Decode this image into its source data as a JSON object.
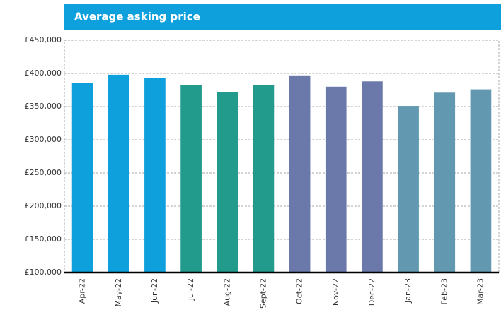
{
  "chart_data": {
    "type": "bar",
    "title": "Average asking price",
    "categories": [
      "Apr-22",
      "May-22",
      "Jun-22",
      "Jul-22",
      "Aug-22",
      "Sept-22",
      "Oct-22",
      "Nov-22",
      "Dec-22",
      "Jan-23",
      "Feb-23",
      "Mar-23"
    ],
    "values": [
      386000,
      398000,
      393000,
      382000,
      372000,
      383000,
      397000,
      380000,
      388000,
      351000,
      371000,
      376000
    ],
    "colors": [
      "#0ea0dc",
      "#0ea0dc",
      "#0ea0dc",
      "#229b8c",
      "#229b8c",
      "#229b8c",
      "#6a78aa",
      "#6a78aa",
      "#6a78aa",
      "#6399b0",
      "#6399b0",
      "#6399b0"
    ],
    "ylim": [
      100000,
      450000
    ],
    "yticks": [
      {
        "value": 100000,
        "label": "£100,000"
      },
      {
        "value": 150000,
        "label": "£150,000"
      },
      {
        "value": 200000,
        "label": "£200,000"
      },
      {
        "value": 250000,
        "label": "£250,000"
      },
      {
        "value": 300000,
        "label": "£300,000"
      },
      {
        "value": 350000,
        "label": "£350,000"
      },
      {
        "value": 400000,
        "label": "£400,000"
      },
      {
        "value": 450000,
        "label": "£450,000"
      }
    ],
    "grid": true
  }
}
